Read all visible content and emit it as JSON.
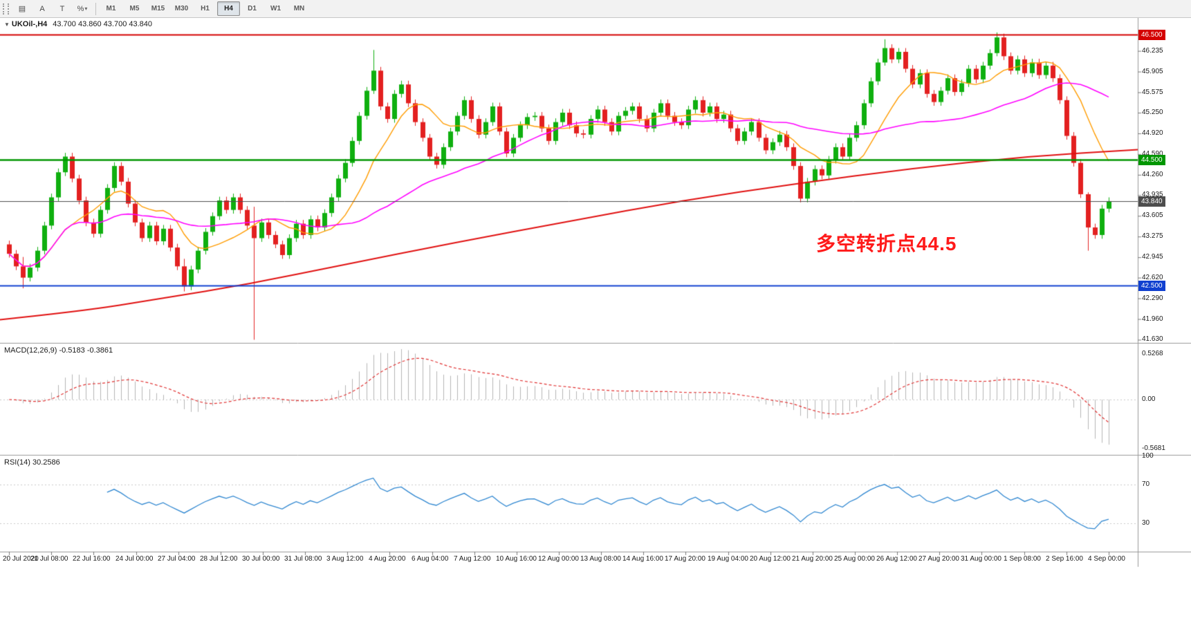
{
  "toolbar": {
    "tools": [
      {
        "name": "objects-list-icon",
        "glyph": "▤"
      },
      {
        "name": "text-label-tool",
        "glyph": "A"
      },
      {
        "name": "text-box-tool",
        "glyph": "T"
      },
      {
        "name": "fibonacci-tool",
        "glyph": "%",
        "caret": "▾"
      }
    ],
    "timeframes": [
      "M1",
      "M5",
      "M15",
      "M30",
      "H1",
      "H4",
      "D1",
      "W1",
      "MN"
    ],
    "active_timeframe": "H4"
  },
  "chart": {
    "collapse_glyph": "▼",
    "symbol_period": "UKOil-,H4",
    "ohlc": "43.700 43.860 43.700 43.840"
  },
  "annotation": {
    "text": "多空转折点44.5",
    "color": "#ff1a1a"
  },
  "price_scale": {
    "labels": [
      "46.235",
      "45.905",
      "45.575",
      "45.250",
      "44.920",
      "44.590",
      "44.260",
      "43.935",
      "43.605",
      "43.275",
      "42.945",
      "42.620",
      "42.290",
      "41.960",
      "41.630"
    ]
  },
  "hlines": [
    {
      "price": 46.5,
      "label": "46.500",
      "color": "#d40000",
      "width": 2
    },
    {
      "price": 44.5,
      "label": "44.500",
      "color": "#009600",
      "width": 2.5
    },
    {
      "price": 43.84,
      "label": "43.840",
      "color": "#4d4d4d",
      "width": 1
    },
    {
      "price": 42.5,
      "label": "42.500",
      "color": "#1040d0",
      "width": 2
    }
  ],
  "indicators": {
    "macd": {
      "label": "MACD(12,26,9) -0.5183 -0.3861",
      "scale": [
        {
          "text": "0.5268",
          "value": 0.5268
        },
        {
          "text": "0.00",
          "value": 0
        },
        {
          "text": "-0.5681",
          "value": -0.5681
        }
      ]
    },
    "rsi": {
      "label": "RSI(14) 30.2586",
      "scale": [
        {
          "text": "100",
          "value": 100
        },
        {
          "text": "70",
          "value": 70
        },
        {
          "text": "30",
          "value": 30
        }
      ],
      "levels": [
        70,
        30
      ]
    }
  },
  "time_axis": {
    "labels": [
      "20 Jul 2020",
      "21 Jul 08:00",
      "22 Jul 16:00",
      "24 Jul 00:00",
      "27 Jul 04:00",
      "28 Jul 12:00",
      "30 Jul 00:00",
      "31 Jul 08:00",
      "3 Aug 12:00",
      "4 Aug 20:00",
      "6 Aug 04:00",
      "7 Aug 12:00",
      "10 Aug 16:00",
      "12 Aug 00:00",
      "13 Aug 08:00",
      "14 Aug 16:00",
      "17 Aug 20:00",
      "19 Aug 04:00",
      "20 Aug 12:00",
      "21 Aug 20:00",
      "25 Aug 00:00",
      "26 Aug 12:00",
      "27 Aug 20:00",
      "31 Aug 00:00",
      "1 Sep 08:00",
      "2 Sep 16:00",
      "4 Sep 00:00"
    ]
  },
  "chart_data": {
    "type": "candlestick",
    "symbol": "UKOil-",
    "timeframe": "H4",
    "title": "UKOil-,H4 43.700 43.860 43.700 43.840",
    "ylim": [
      41.58,
      46.76
    ],
    "first_open": 43.15,
    "closes": [
      43.0,
      42.8,
      42.62,
      42.78,
      43.05,
      43.45,
      43.9,
      44.3,
      44.55,
      44.2,
      43.85,
      43.5,
      43.32,
      43.7,
      44.05,
      44.4,
      44.15,
      43.8,
      43.5,
      43.25,
      43.45,
      43.2,
      43.4,
      43.1,
      42.8,
      42.48,
      42.75,
      43.05,
      43.35,
      43.6,
      43.85,
      43.7,
      43.9,
      43.7,
      43.45,
      43.25,
      43.5,
      43.3,
      43.15,
      42.98,
      43.25,
      43.48,
      43.3,
      43.55,
      43.42,
      43.65,
      43.9,
      44.2,
      44.45,
      44.8,
      45.2,
      45.6,
      45.92,
      45.35,
      45.15,
      45.55,
      45.7,
      45.4,
      45.1,
      44.85,
      44.55,
      44.42,
      44.7,
      44.95,
      45.2,
      45.45,
      45.15,
      44.9,
      45.1,
      45.35,
      44.95,
      44.6,
      44.85,
      45.05,
      45.18,
      45.2,
      45.0,
      44.8,
      45.1,
      45.25,
      45.05,
      44.92,
      44.9,
      45.15,
      45.3,
      45.1,
      44.95,
      45.2,
      45.28,
      45.35,
      45.15,
      45.0,
      45.25,
      45.4,
      45.2,
      45.1,
      45.05,
      45.3,
      45.45,
      45.25,
      45.35,
      45.15,
      45.22,
      45.0,
      44.8,
      44.95,
      45.1,
      44.85,
      44.65,
      44.78,
      44.9,
      44.7,
      44.4,
      43.88,
      44.15,
      44.35,
      44.25,
      44.5,
      44.7,
      44.55,
      44.85,
      45.05,
      45.4,
      45.75,
      46.05,
      46.28,
      46.1,
      46.22,
      45.95,
      45.7,
      45.88,
      45.55,
      45.42,
      45.6,
      45.8,
      45.58,
      45.72,
      45.95,
      45.78,
      46.0,
      46.2,
      46.45,
      46.15,
      45.92,
      46.1,
      45.88,
      46.05,
      45.85,
      46.0,
      45.8,
      45.45,
      44.88,
      44.45,
      43.95,
      43.42,
      43.3,
      43.72,
      43.84
    ],
    "default_wick": 0.06,
    "wick_overrides": {
      "2": [
        42.95,
        42.45
      ],
      "25": [
        42.92,
        42.4
      ],
      "35": [
        43.75,
        41.63
      ],
      "52": [
        46.25,
        45.55
      ],
      "125": [
        46.42,
        46.0
      ],
      "141": [
        46.53,
        46.15
      ],
      "154": [
        43.98,
        43.05
      ]
    },
    "moving_averages": [
      {
        "name": "ma-fast",
        "type": "sma",
        "period": 10,
        "color": "#ff9c00",
        "width": 1.4
      },
      {
        "name": "ma-medium",
        "type": "sma",
        "period": 34,
        "color": "#ff00ff",
        "width": 1.6
      },
      {
        "name": "ma-slow",
        "type": "waypoints",
        "color": "#e01010",
        "width": 2,
        "points": [
          [
            0,
            41.95
          ],
          [
            0.07,
            42.08
          ],
          [
            0.14,
            42.28
          ],
          [
            0.22,
            42.52
          ],
          [
            0.3,
            42.82
          ],
          [
            0.4,
            43.18
          ],
          [
            0.5,
            43.52
          ],
          [
            0.6,
            43.85
          ],
          [
            0.7,
            44.12
          ],
          [
            0.8,
            44.36
          ],
          [
            0.9,
            44.55
          ],
          [
            1.0,
            44.66
          ]
        ]
      }
    ],
    "macd_params": [
      12,
      26,
      9
    ],
    "macd_range": [
      -0.64,
      0.64
    ],
    "rsi_period": 14,
    "rsi_range": [
      0,
      100
    ]
  },
  "colors": {
    "bull": "#0faf0f",
    "bear": "#e32020",
    "macd_hist": "#b4b4b4",
    "macd_signal": "#e03030",
    "rsi_line": "#2e86d0",
    "panel_border": "#999999",
    "level_dotted": "#c8c8c8"
  }
}
